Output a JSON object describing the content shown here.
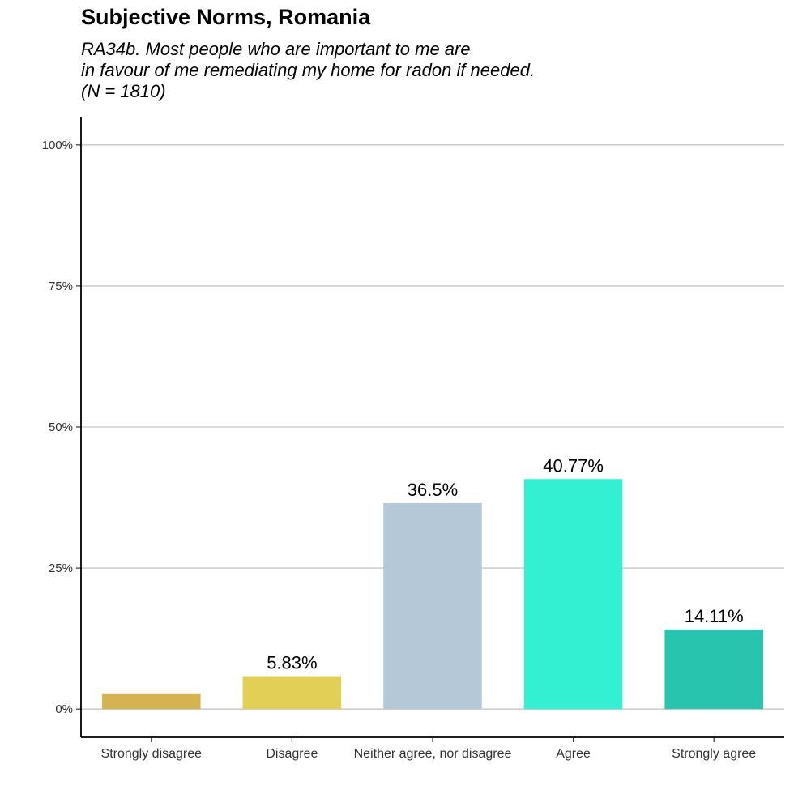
{
  "chart_data": {
    "type": "bar",
    "title": "Subjective Norms, Romania",
    "subtitle": [
      "RA34b. Most people who are important to me are",
      "in favour of me remediating my home for radon if needed.",
      "(N = 1810)"
    ],
    "xlabel": "",
    "ylabel": "",
    "categories": [
      "Strongly disagree",
      "Disagree",
      "Neither agree, nor disagree",
      "Agree",
      "Strongly agree"
    ],
    "values": [
      2.79,
      5.83,
      36.5,
      40.77,
      14.11
    ],
    "data_labels": [
      "",
      "5.83%",
      "36.5%",
      "40.77%",
      "14.11%"
    ],
    "colors": [
      "#d4b350",
      "#e2cf56",
      "#b4c8d8",
      "#33f0d2",
      "#28c4ad"
    ],
    "ylim": [
      -5,
      105
    ],
    "yticks": [
      0,
      25,
      50,
      75,
      100
    ],
    "ytick_labels": [
      "0%",
      "25%",
      "50%",
      "75%",
      "100%"
    ],
    "grid": "horizontal",
    "legend": "none"
  }
}
